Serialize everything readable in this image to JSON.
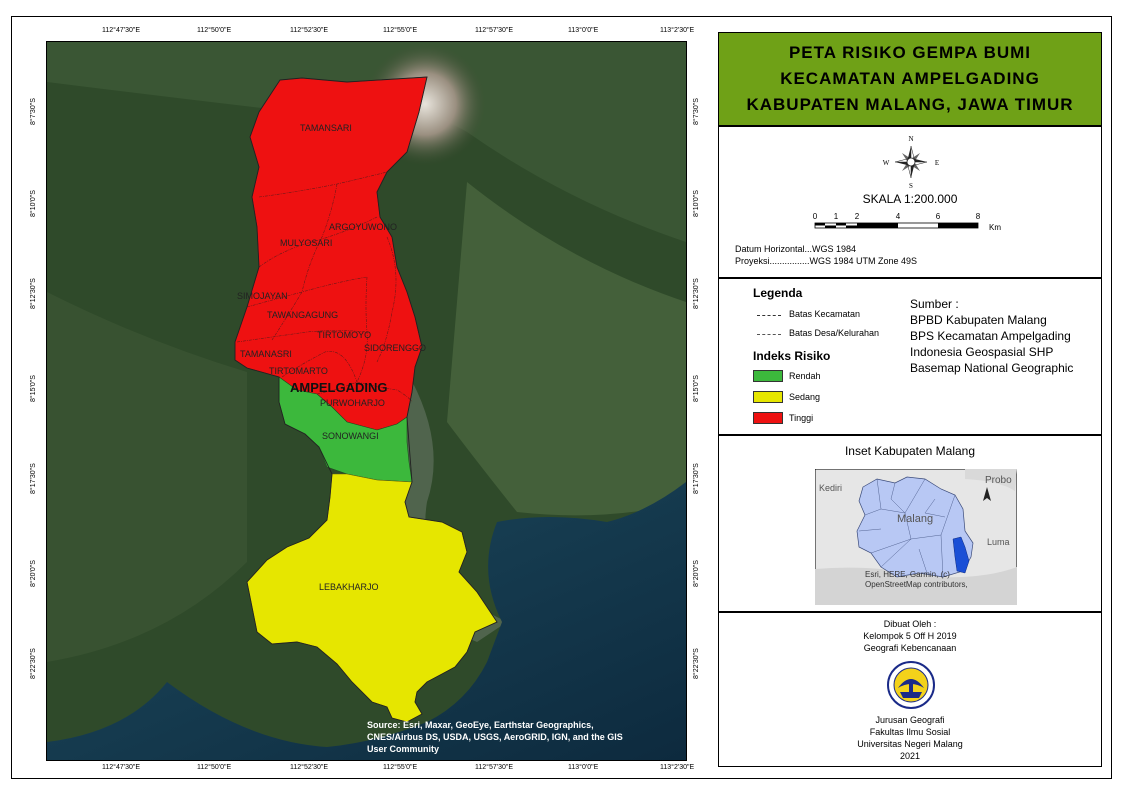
{
  "title": {
    "line1": "PETA RISIKO GEMPA BUMI",
    "line2": "KECAMATAN AMPELGADING",
    "line3": "KABUPATEN MALANG, JAWA TIMUR"
  },
  "colors": {
    "title_bg": "#6fa117",
    "tinggi": "#ee1111",
    "sedang": "#e6e600",
    "rendah": "#3cb83c",
    "inset_fill": "#b8c8f4",
    "inset_highlight": "#1a4fd6"
  },
  "ticks": {
    "top": [
      "112°47'30\"E",
      "112°50'0\"E",
      "112°52'30\"E",
      "112°55'0\"E",
      "112°57'30\"E",
      "113°0'0\"E",
      "113°2'30\"E"
    ],
    "bottom": [
      "112°47'30\"E",
      "112°50'0\"E",
      "112°52'30\"E",
      "112°55'0\"E",
      "112°57'30\"E",
      "113°0'0\"E",
      "113°2'30\"E"
    ],
    "left": [
      "8°7'30\"S",
      "8°10'0\"S",
      "8°12'30\"S",
      "8°15'0\"S",
      "8°17'30\"S",
      "8°20'0\"S",
      "8°22'30\"S"
    ],
    "right": [
      "8°7'30\"S",
      "8°10'0\"S",
      "8°12'30\"S",
      "8°15'0\"S",
      "8°17'30\"S",
      "8°20'0\"S",
      "8°22'30\"S"
    ]
  },
  "map": {
    "labels": {
      "tamansari": "TAMANSARI",
      "argoyuwono": "ARGOYUWONO",
      "mulyosari": "MULYOSARI",
      "simojayan": "SIMOJAYAN",
      "tawangagung": "TAWANGAGUNG",
      "tirtomoyo": "TIRTOMOYO",
      "sidorenggo": "SIDORENGGO",
      "tamanasri": "TAMANASRI",
      "tirtomarto": "TIRTOMARTO",
      "kecamatan": "AMPELGADING",
      "purwoharjo": "PURWOHARJO",
      "sonowangi": "SONOWANGI",
      "lebakharjo": "LEBAKHARJO"
    },
    "credit_line1": "Source: Esri, Maxar, GeoEye, Earthstar Geographics,",
    "credit_line2": "CNES/Airbus DS, USDA, USGS, AeroGRID, IGN, and the GIS",
    "credit_line3": "User Community"
  },
  "north": {
    "n": "N",
    "s": "S",
    "e": "E",
    "w": "W"
  },
  "scale": {
    "text": "SKALA 1:200.000",
    "labels": [
      "0",
      "1",
      "2",
      "4",
      "6",
      "8"
    ],
    "unit": "Km"
  },
  "datum": {
    "line1": "Datum Horizontal...WGS 1984",
    "line2": "Proyeksi................WGS 1984 UTM Zone 49S"
  },
  "legend": {
    "title": "Legenda",
    "batas_kecamatan": "Batas Kecamatan",
    "batas_desa": "Batas Desa/Kelurahan",
    "indeks_title": "Indeks Risiko",
    "rendah": "Rendah",
    "sedang": "Sedang",
    "tinggi": "Tinggi"
  },
  "sumber": {
    "title": "Sumber :",
    "items": [
      "BPBD Kabupaten Malang",
      "BPS Kecamatan Ampelgading",
      "Indonesia Geospasial SHP",
      "Basemap National Geographic"
    ]
  },
  "inset": {
    "title": "Inset Kabupaten Malang",
    "kediri": "Kediri",
    "malang": "Malang",
    "probo": "Probo",
    "luma": "Luma",
    "credit1": "Esri, HERE, Garmin, (c)",
    "credit2": "OpenStreetMap contributors,"
  },
  "author": {
    "dibuat": "Dibuat Oleh :",
    "kelompok": "Kelompok 5 Off H 2019",
    "mk": "Geografi Kebencanaan",
    "jurusan": "Jurusan Geografi",
    "fakultas": "Fakultas Ilmu Sosial",
    "univ": "Universitas Negeri Malang",
    "year": "2021"
  }
}
